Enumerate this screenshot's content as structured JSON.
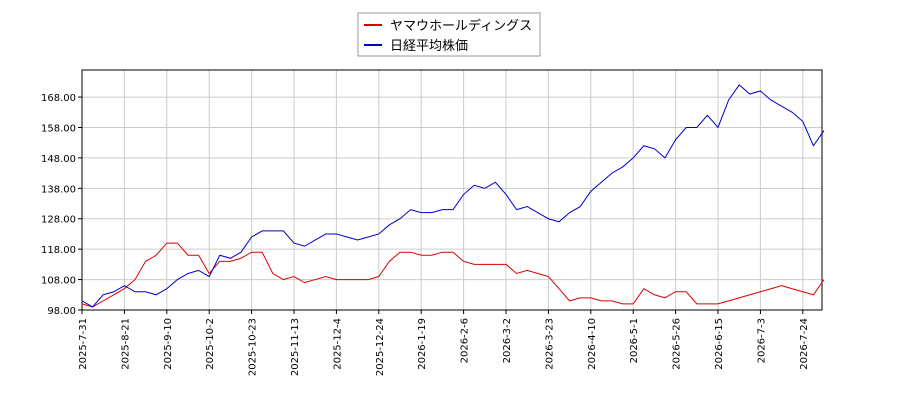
{
  "chart_data": {
    "type": "line",
    "categories": [
      "2025-7-31",
      null,
      null,
      null,
      "2025-8-21",
      null,
      null,
      null,
      "2025-9-10",
      null,
      null,
      null,
      "2025-10-2",
      null,
      null,
      null,
      "2025-10-23",
      null,
      null,
      null,
      "2025-11-13",
      null,
      null,
      null,
      "2025-12-4",
      null,
      null,
      null,
      "2025-12-24",
      null,
      null,
      null,
      "2026-1-19",
      null,
      null,
      null,
      "2026-2-6",
      null,
      null,
      null,
      "2026-3-2",
      null,
      null,
      null,
      "2026-3-23",
      null,
      null,
      null,
      "2026-4-10",
      null,
      null,
      null,
      "2026-5-1",
      null,
      null,
      null,
      "2026-5-26",
      null,
      null,
      null,
      "2026-6-15",
      null,
      null,
      null,
      "2026-7-3",
      null,
      null,
      null,
      "2026-7-24",
      null,
      null
    ],
    "series": [
      {
        "name": "ヤマウホールディングス",
        "color": "#dd0000",
        "values": [
          100,
          99,
          101,
          103,
          105,
          108,
          114,
          116,
          120,
          120,
          116,
          116,
          110,
          114,
          114,
          115,
          117,
          117,
          110,
          108,
          109,
          107,
          108,
          109,
          108,
          108,
          108,
          108,
          109,
          114,
          117,
          117,
          116,
          116,
          117,
          117,
          114,
          113,
          113,
          113,
          113,
          110,
          111,
          110,
          109,
          105,
          101,
          102,
          102,
          101,
          101,
          100,
          100,
          105,
          103,
          102,
          104,
          104,
          100,
          100,
          100,
          101,
          102,
          103,
          104,
          105,
          106,
          105,
          104,
          103,
          108
        ]
      },
      {
        "name": "日経平均株価",
        "color": "#0000cc",
        "values": [
          101,
          99,
          103,
          104,
          106,
          104,
          104,
          103,
          105,
          108,
          110,
          111,
          109,
          116,
          115,
          117,
          122,
          124,
          124,
          124,
          120,
          119,
          121,
          123,
          123,
          122,
          121,
          122,
          123,
          126,
          128,
          131,
          130,
          130,
          131,
          131,
          136,
          139,
          138,
          140,
          136,
          131,
          132,
          130,
          128,
          127,
          130,
          132,
          137,
          140,
          143,
          145,
          148,
          152,
          151,
          148,
          154,
          158,
          158,
          162,
          158,
          167,
          172,
          169,
          170,
          167,
          165,
          163,
          160,
          152,
          157
        ]
      }
    ],
    "ylim": [
      98,
      176.9
    ],
    "yticks": [
      {
        "value": 98,
        "label": "98.00"
      },
      {
        "value": 108,
        "label": "108.00"
      },
      {
        "value": 118,
        "label": "118.00"
      },
      {
        "value": 128,
        "label": "128.00"
      },
      {
        "value": 138,
        "label": "138.00"
      },
      {
        "value": 148,
        "label": "148.00"
      },
      {
        "value": 158,
        "label": "158.00"
      },
      {
        "value": 168,
        "label": "168.00"
      }
    ],
    "grid": true,
    "legend": "top"
  }
}
